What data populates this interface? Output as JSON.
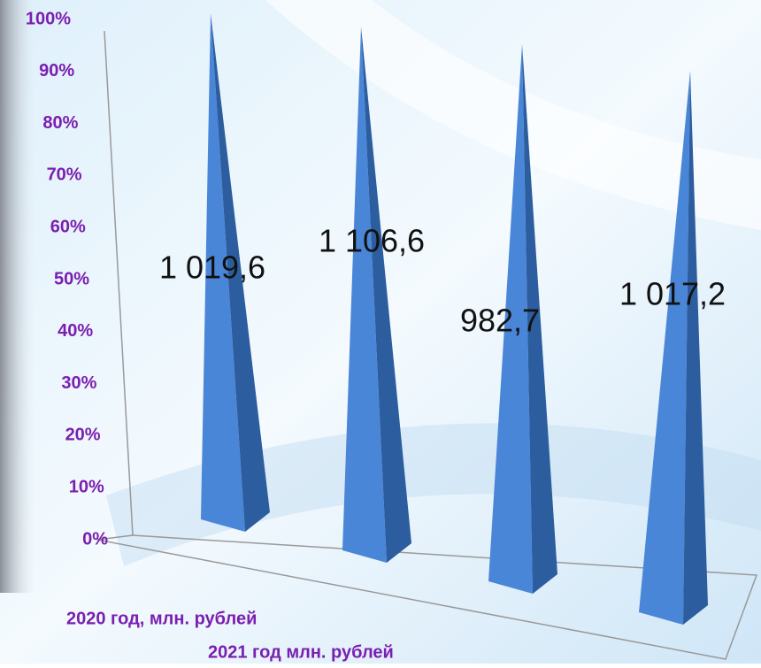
{
  "chart_data": {
    "type": "pyramid",
    "categories": [
      "2020 год, млн. рублей",
      "2021 год  млн. рублей",
      null,
      null
    ],
    "values": [
      1019.6,
      1106.6,
      982.7,
      1017.2
    ],
    "value_labels": [
      "1 019,6",
      "1 106,6",
      "982,7",
      "1 017,2"
    ],
    "stacked_percent": true,
    "color": "#4a86d8",
    "ylim": [
      0,
      100
    ],
    "yticks": [
      {
        "value": 0,
        "label": "0%"
      },
      {
        "value": 10,
        "label": "10%"
      },
      {
        "value": 20,
        "label": "20%"
      },
      {
        "value": 30,
        "label": "30%"
      },
      {
        "value": 40,
        "label": "40%"
      },
      {
        "value": 50,
        "label": "50%"
      },
      {
        "value": 60,
        "label": "60%"
      },
      {
        "value": 70,
        "label": "70%"
      },
      {
        "value": 80,
        "label": "80%"
      },
      {
        "value": 90,
        "label": "90%"
      },
      {
        "value": 100,
        "label": "100%"
      }
    ]
  }
}
